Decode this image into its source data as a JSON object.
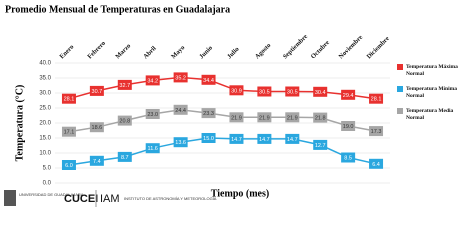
{
  "chart_data": {
    "type": "line",
    "title": "Promedio Mensual de Temperaturas en Guadalajara",
    "y_label": "Temperatura (°C)",
    "x_label": "Tiempo (mes)",
    "categories": [
      "Enero",
      "Febrero",
      "Marzo",
      "Abril",
      "Mayo",
      "Junio",
      "Julio",
      "Agosto",
      "Septiembre",
      "Octubre",
      "Noviembre",
      "Diciembre"
    ],
    "series": [
      {
        "name": "Temperatura Máxima Normal",
        "color": "#e8312f",
        "values": [
          28.1,
          30.7,
          32.7,
          34.2,
          35.2,
          34.4,
          30.9,
          30.5,
          30.5,
          30.4,
          29.4,
          28.1
        ],
        "value_labels": [
          "28.1",
          "30.7",
          "32.7",
          "34.2",
          "35.2",
          "34.4",
          "30.9",
          "30.5",
          "30.5",
          "30.4",
          "29.4",
          "28.1"
        ]
      },
      {
        "name": "Temperatura Mínima Normal",
        "color": "#2aa7df",
        "values": [
          6.0,
          7.4,
          8.7,
          11.6,
          13.6,
          15.0,
          14.7,
          14.7,
          14.7,
          12.7,
          8.5,
          6.4
        ],
        "value_labels": [
          "6.0",
          "7.4",
          "8.7",
          "11.6",
          "13.6",
          "15.0",
          "14.7",
          "14.7",
          "14.7",
          "12.7",
          "8.5",
          "6.4"
        ]
      },
      {
        "name": "Temperatura Media Normal",
        "color": "#a6a6a6",
        "values": [
          17.1,
          18.6,
          20.8,
          23.0,
          24.4,
          23.3,
          21.9,
          21.9,
          21.9,
          21.8,
          19.0,
          17.3
        ],
        "value_labels": [
          "17.1",
          "18.6",
          "20.8",
          "23.0",
          "24.4",
          "23.3",
          "21.9",
          "21.9",
          "21.9",
          "21.8",
          "19.0",
          "17.3"
        ]
      }
    ],
    "ylim": [
      0,
      40
    ],
    "yticks": [
      {
        "value": 0,
        "label": "0.0"
      },
      {
        "value": 5,
        "label": "5.0"
      },
      {
        "value": 10,
        "label": "10.0"
      },
      {
        "value": 15,
        "label": "15.0"
      },
      {
        "value": 20,
        "label": "20.0"
      },
      {
        "value": 25,
        "label": "25.0"
      },
      {
        "value": 30,
        "label": "30.0"
      },
      {
        "value": 35,
        "label": "35.0"
      },
      {
        "value": 40,
        "label": "40.0"
      }
    ],
    "grid": true,
    "legend": "right"
  },
  "footer": {
    "university": "UNIVERSIDAD DE GUADALAJARA",
    "center": "CUCEI",
    "institute_short": "IAM",
    "institute": "INSTITUTO DE ASTRONOMÍA Y METEOROLOGÍA"
  }
}
